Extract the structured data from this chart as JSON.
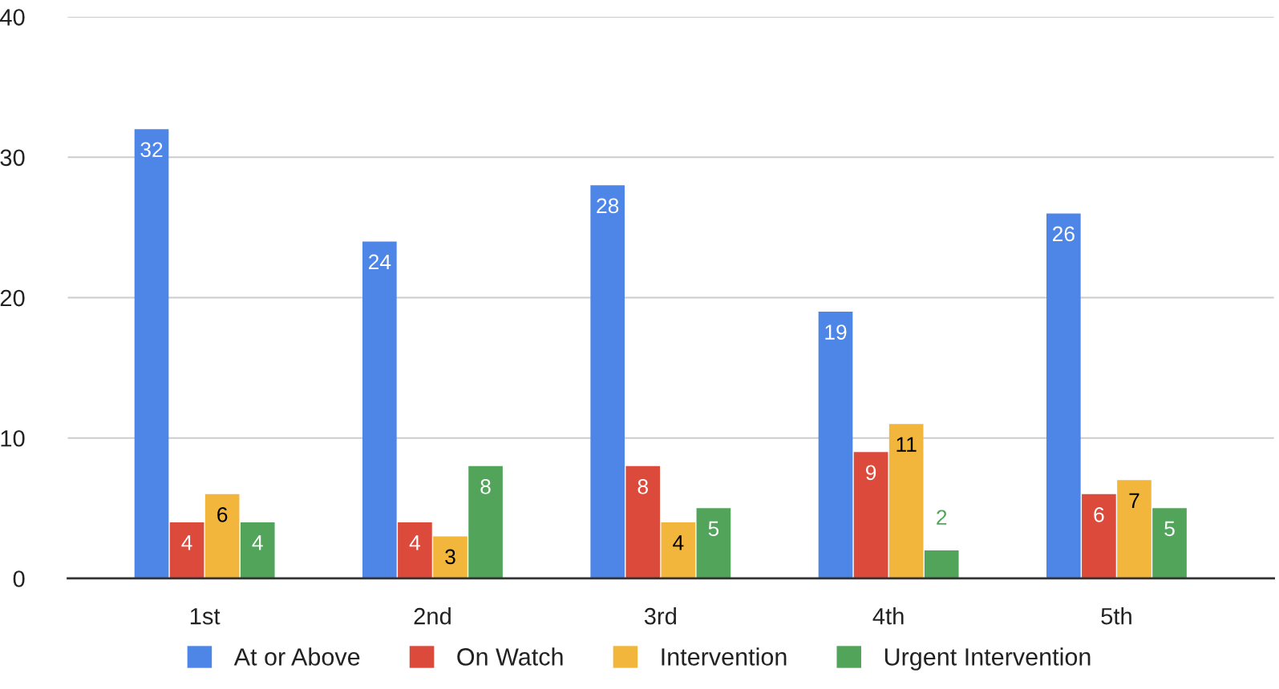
{
  "chart_data": {
    "type": "bar",
    "categories": [
      "1st",
      "2nd",
      "3rd",
      "4th",
      "5th"
    ],
    "series": [
      {
        "name": "At or Above",
        "color": "#4e86e8",
        "values": [
          32,
          24,
          28,
          19,
          26
        ]
      },
      {
        "name": "On Watch",
        "color": "#dc4a3c",
        "values": [
          4,
          4,
          8,
          9,
          6
        ]
      },
      {
        "name": "Intervention",
        "color": "#f3b63c",
        "values": [
          6,
          3,
          4,
          11,
          7
        ]
      },
      {
        "name": "Urgent Intervention",
        "color": "#51a45a",
        "values": [
          4,
          8,
          5,
          2,
          5
        ]
      }
    ],
    "ylim": [
      0,
      40
    ],
    "yticks": [
      0,
      10,
      20,
      30,
      40
    ],
    "grid": "y",
    "legend": "bottom",
    "data_labels": true
  }
}
